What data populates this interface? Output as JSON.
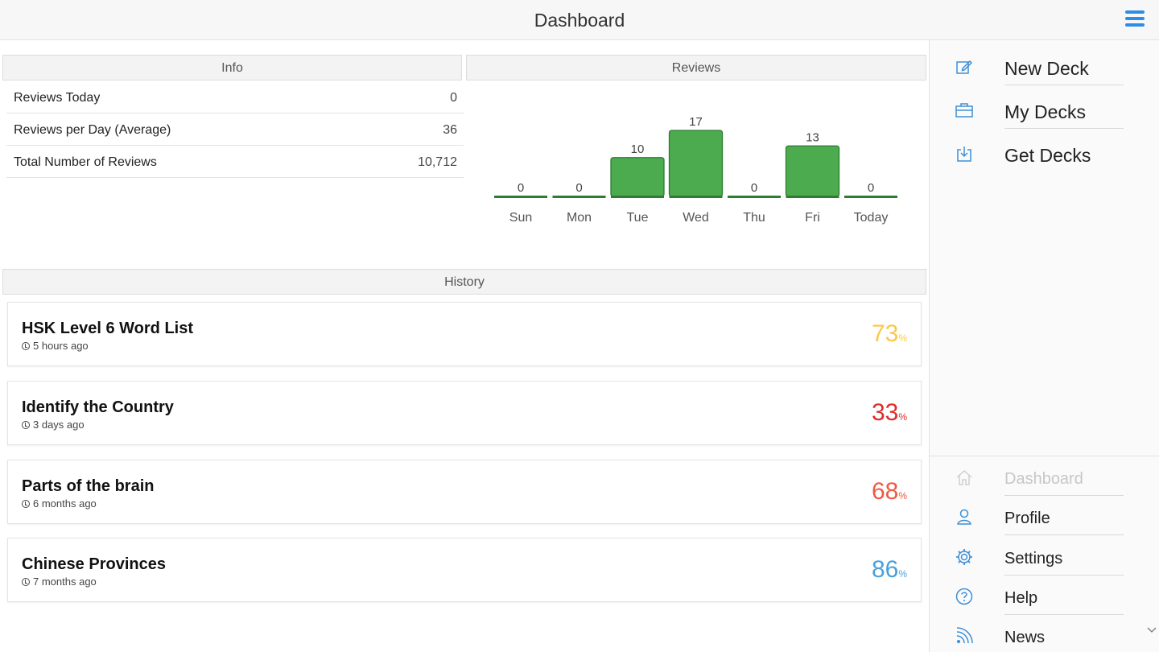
{
  "header": {
    "title": "Dashboard",
    "menu_icon": "hamburger-menu-icon"
  },
  "info": {
    "heading": "Info",
    "rows": [
      {
        "label": "Reviews Today",
        "value": "0"
      },
      {
        "label": "Reviews per Day (Average)",
        "value": "36"
      },
      {
        "label": "Total Number of Reviews",
        "value": "10,712"
      }
    ]
  },
  "reviews": {
    "heading": "Reviews"
  },
  "chart_data": {
    "type": "bar",
    "categories": [
      "Sun",
      "Mon",
      "Tue",
      "Wed",
      "Thu",
      "Fri",
      "Today"
    ],
    "values": [
      0,
      0,
      10,
      17,
      0,
      13,
      0
    ],
    "data_labels": [
      "0",
      "0",
      "10",
      "17",
      "0",
      "13",
      "0"
    ],
    "bar_color": "#4caa4f",
    "bar_stroke": "#2e7d32",
    "title": "",
    "xlabel": "",
    "ylabel": "",
    "grid": false
  },
  "history": {
    "heading": "History",
    "items": [
      {
        "name": "HSK Level 6 Word List",
        "time": "5 hours ago",
        "percent": "73",
        "unit": "%",
        "color": "#f8c94a"
      },
      {
        "name": "Identify the Country",
        "time": "3 days ago",
        "percent": "33",
        "unit": "%",
        "color": "#e02b2b"
      },
      {
        "name": "Parts of the brain",
        "time": "6 months ago",
        "percent": "68",
        "unit": "%",
        "color": "#ee5a44"
      },
      {
        "name": "Chinese Provinces",
        "time": "7 months ago",
        "percent": "86",
        "unit": "%",
        "color": "#4a9fdc"
      }
    ]
  },
  "sidebar": {
    "top_items": [
      {
        "label": "New Deck",
        "icon": "edit-icon"
      },
      {
        "label": "My Decks",
        "icon": "briefcase-icon"
      },
      {
        "label": "Get Decks",
        "icon": "download-icon"
      }
    ],
    "bottom_items": [
      {
        "label": "Dashboard",
        "icon": "home-icon",
        "disabled": true
      },
      {
        "label": "Profile",
        "icon": "user-icon"
      },
      {
        "label": "Settings",
        "icon": "gear-icon"
      },
      {
        "label": "Help",
        "icon": "help-icon"
      },
      {
        "label": "News",
        "icon": "rss-icon"
      }
    ]
  },
  "colors": {
    "accent": "#2b8de6",
    "icon_blue": "#3d8fd6"
  }
}
